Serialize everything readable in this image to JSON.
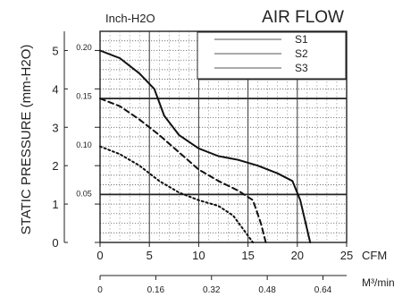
{
  "chart_data": {
    "type": "line",
    "title": "AIR FLOW",
    "ylabel_left": "STATIC PRESSURE (mm-H2O)",
    "ylabel_inner": "Inch-H2O",
    "x_unit": "CFM",
    "x2_unit": "M³/min",
    "xlim": [
      0,
      25
    ],
    "ylim": [
      0,
      5.5
    ],
    "x_ticks": [
      "0",
      "5",
      "10",
      "15",
      "20",
      "25"
    ],
    "y_ticks": [
      "0",
      "1",
      "2",
      "3",
      "4",
      "5"
    ],
    "y_inch_ticks": [
      "0.05",
      "0.10",
      "0.15",
      "0.20"
    ],
    "x2_ticks": [
      "0",
      "0.16",
      "0.32",
      "0.48",
      "0.64"
    ],
    "grid": true,
    "legend_position": "top-right",
    "series": [
      {
        "name": "S1",
        "style": "dotted",
        "points": [
          [
            0,
            2.5
          ],
          [
            2,
            2.3
          ],
          [
            4,
            2.0
          ],
          [
            6,
            1.6
          ],
          [
            8,
            1.3
          ],
          [
            10,
            1.1
          ],
          [
            12,
            0.95
          ],
          [
            13.5,
            0.7
          ],
          [
            14.5,
            0.35
          ],
          [
            15.5,
            0
          ]
        ]
      },
      {
        "name": "S2",
        "style": "dashed",
        "points": [
          [
            0,
            3.75
          ],
          [
            2,
            3.55
          ],
          [
            4,
            3.2
          ],
          [
            6,
            2.8
          ],
          [
            8,
            2.35
          ],
          [
            10,
            1.9
          ],
          [
            12,
            1.6
          ],
          [
            14,
            1.35
          ],
          [
            15.5,
            1.1
          ],
          [
            16.3,
            0.5
          ],
          [
            16.8,
            0
          ]
        ]
      },
      {
        "name": "S3",
        "style": "solid",
        "points": [
          [
            0,
            5.0
          ],
          [
            2,
            4.8
          ],
          [
            4,
            4.4
          ],
          [
            5.5,
            4.0
          ],
          [
            6.5,
            3.3
          ],
          [
            8,
            2.8
          ],
          [
            10,
            2.45
          ],
          [
            12,
            2.25
          ],
          [
            14,
            2.15
          ],
          [
            16,
            2.0
          ],
          [
            18,
            1.8
          ],
          [
            19.5,
            1.6
          ],
          [
            20.3,
            1.1
          ],
          [
            21.3,
            0
          ]
        ]
      }
    ]
  }
}
